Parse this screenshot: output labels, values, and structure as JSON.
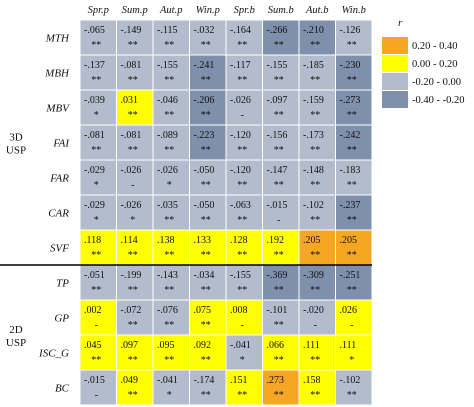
{
  "chart_data": {
    "type": "heatmap",
    "columns": [
      "Spr.p",
      "Sum.p",
      "Aut.p",
      "Win.p",
      "Spr.b",
      "Sum.b",
      "Aut.b",
      "Win.b"
    ],
    "groups": [
      {
        "label_line1": "3D",
        "label_line2": "USP",
        "rows": [
          "MTH",
          "MBH",
          "MBV",
          "FAI",
          "FAR",
          "CAR",
          "SVF"
        ]
      },
      {
        "label_line1": "2D",
        "label_line2": "USP",
        "rows": [
          "TP",
          "GP",
          "ISC_G",
          "BC"
        ]
      }
    ],
    "values": [
      [
        "-.065",
        "-.149",
        "-.115",
        "-.032",
        "-.164",
        "-.266",
        "-.210",
        "-.126"
      ],
      [
        "-.137",
        "-.081",
        "-.155",
        "-.241",
        "-.117",
        "-.155",
        "-.185",
        "-.230"
      ],
      [
        "-.039",
        ".031",
        "-.046",
        "-.206",
        "-.026",
        "-.097",
        "-.159",
        "-.273"
      ],
      [
        "-.081",
        "-.081",
        "-.089",
        "-.223",
        "-.120",
        "-.156",
        "-.173",
        "-.242"
      ],
      [
        "-.029",
        "-.026",
        "-.026",
        "-.050",
        "-.120",
        "-.147",
        "-.148",
        "-.183"
      ],
      [
        "-.029",
        "-.026",
        "-.035",
        "-.050",
        "-.063",
        "-.015",
        "-.102",
        "-.237"
      ],
      [
        ".118",
        ".114",
        ".138",
        ".133",
        ".128",
        ".192",
        ".205",
        ".205"
      ],
      [
        "-.051",
        "-.199",
        "-.143",
        "-.034",
        "-.155",
        "-.369",
        "-.309",
        "-.251"
      ],
      [
        ".002",
        "-.072",
        "-.076",
        ".075",
        ".008",
        "-.101",
        "-.020",
        ".026"
      ],
      [
        ".045",
        ".097",
        ".095",
        ".092",
        "-.041",
        ".066",
        ".111",
        ".111"
      ],
      [
        "-.015",
        ".049",
        "-.041",
        "-.174",
        ".151",
        ".273",
        ".158",
        "-.102"
      ]
    ],
    "significance": [
      [
        "**",
        "**",
        "**",
        "**",
        "**",
        "**",
        "**",
        "**"
      ],
      [
        "**",
        "**",
        "**",
        "**",
        "**",
        "**",
        "**",
        "**"
      ],
      [
        "*",
        "**",
        "**",
        "**",
        "-",
        "**",
        "**",
        "**"
      ],
      [
        "**",
        "**",
        "**",
        "**",
        "**",
        "**",
        "**",
        "**"
      ],
      [
        "*",
        "-",
        "*",
        "**",
        "**",
        "**",
        "**",
        "**"
      ],
      [
        "*",
        "*",
        "**",
        "**",
        "**",
        "-",
        "**",
        "**"
      ],
      [
        "**",
        "**",
        "**",
        "**",
        "**",
        "**",
        "**",
        "**"
      ],
      [
        "**",
        "**",
        "**",
        "**",
        "**",
        "**",
        "**",
        "**"
      ],
      [
        "-",
        "**",
        "**",
        "**",
        "-",
        "**",
        "-",
        "-"
      ],
      [
        "**",
        "**",
        "**",
        "**",
        "*",
        "**",
        "**",
        "*"
      ],
      [
        "-",
        "**",
        "*",
        "**",
        "**",
        "**",
        "**",
        "**"
      ]
    ],
    "legend": {
      "title": "r",
      "position": "top-right",
      "bins": [
        {
          "label": "0.20 - 0.40",
          "color": "#F5A623"
        },
        {
          "label": "0.00 - 0.20",
          "color": "#FFFF00"
        },
        {
          "label": "-0.20 - 0.00",
          "color": "#B3BCCD"
        },
        {
          "label": "-0.40 - -0.20",
          "color": "#7F90AC"
        }
      ]
    }
  }
}
